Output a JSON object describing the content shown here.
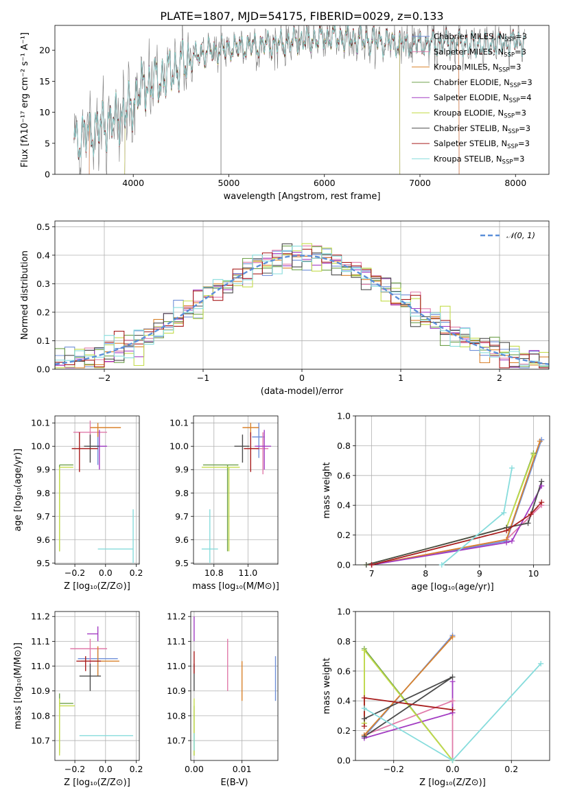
{
  "colors": {
    "Chabrier MILES": "#6f8fd8",
    "Salpeter MILES": "#e07aa9",
    "Kroupa MILES": "#d9822b",
    "Chabrier ELODIE": "#6ea04a",
    "Salpeter ELODIE": "#a23bc2",
    "Kroupa ELODIE": "#c4dc4a",
    "Chabrier STELIB": "#4a4a4a",
    "Salpeter STELIB": "#a81c1c",
    "Kroupa STELIB": "#86dcdc",
    "gaussian": "#5b8fd9"
  },
  "chart_data": [
    {
      "id": "spectrum",
      "type": "line",
      "title": "PLATE=1807, MJD=54175, FIBERID=0029, z=0.133",
      "xlabel": "wavelength [Angstrom, rest frame]",
      "ylabel": "Flux [fλ10⁻¹⁷ erg cm⁻² s⁻¹ A⁻¹]",
      "xlim": [
        3180,
        8350
      ],
      "ylim": [
        0,
        24
      ],
      "xticks": [
        4000,
        5000,
        6000,
        7000,
        8000
      ],
      "yticks": [
        0,
        5,
        10,
        15,
        20
      ],
      "grid": false,
      "legend_position": "top-right",
      "legend": [
        {
          "label": "Chabrier MILES, N_SSP=3",
          "color_key": "Chabrier MILES"
        },
        {
          "label": "Salpeter MILES, N_SSP=3",
          "color_key": "Salpeter MILES"
        },
        {
          "label": "Kroupa MILES, N_SSP=3",
          "color_key": "Kroupa MILES"
        },
        {
          "label": "Chabrier ELODIE, N_SSP=3",
          "color_key": "Chabrier ELODIE"
        },
        {
          "label": "Salpeter ELODIE, N_SSP=4",
          "color_key": "Salpeter ELODIE"
        },
        {
          "label": "Kroupa ELODIE, N_SSP=3",
          "color_key": "Kroupa ELODIE"
        },
        {
          "label": "Chabrier STELIB, N_SSP=3",
          "color_key": "Chabrier STELIB"
        },
        {
          "label": "Salpeter STELIB, N_SSP=3",
          "color_key": "Salpeter STELIB"
        },
        {
          "label": "Kroupa STELIB, N_SSP=3",
          "color_key": "Kroupa STELIB"
        }
      ],
      "continuum": {
        "x": [
          3380,
          3500,
          3700,
          3900,
          4100,
          4300,
          4500,
          4700,
          4900,
          5100,
          5300,
          5500,
          5700,
          5900,
          6100,
          6300,
          6500,
          6700,
          6900,
          7100,
          7300,
          7500,
          7700,
          7900,
          8100
        ],
        "y": [
          5.5,
          6.5,
          8.0,
          9.5,
          14.0,
          15.5,
          17.5,
          19.5,
          20.0,
          20.5,
          20.8,
          21.0,
          21.5,
          21.8,
          22.0,
          21.8,
          21.5,
          21.3,
          21.0,
          21.0,
          21.2,
          21.0,
          21.0,
          21.2,
          21.5
        ]
      },
      "model_ranges": [
        {
          "key": "Chabrier MILES",
          "range": [
            3540,
            7410
          ]
        },
        {
          "key": "Salpeter MILES",
          "range": [
            3540,
            7410
          ]
        },
        {
          "key": "Kroupa MILES",
          "range": [
            3540,
            7410
          ]
        },
        {
          "key": "Chabrier ELODIE",
          "range": [
            3910,
            6790
          ]
        },
        {
          "key": "Salpeter ELODIE",
          "range": [
            3910,
            6790
          ]
        },
        {
          "key": "Kroupa ELODIE",
          "range": [
            3910,
            6790
          ]
        },
        {
          "key": "Chabrier STELIB",
          "range": [
            3380,
            8100
          ]
        },
        {
          "key": "Salpeter STELIB",
          "range": [
            3380,
            8100
          ]
        },
        {
          "key": "Kroupa STELIB",
          "range": [
            3380,
            8100
          ]
        }
      ]
    },
    {
      "id": "residuals",
      "type": "histogram",
      "xlabel": "(data-model)/error",
      "ylabel": "Normed distribution",
      "xlim": [
        -2.5,
        2.5
      ],
      "ylim": [
        0,
        0.52
      ],
      "xticks": [
        -2,
        -1,
        0,
        1,
        2
      ],
      "yticks": [
        0.0,
        0.1,
        0.2,
        0.3,
        0.4,
        0.5
      ],
      "grid": true,
      "bin_width": 0.1,
      "legend": [
        {
          "label": "𝒩(0, 1)",
          "color_key": "gaussian",
          "style": "dashed"
        }
      ],
      "legend_position": "top-right"
    },
    {
      "id": "age-vs-Z",
      "type": "errorbar",
      "xlabel": "Z [log₁₀(Z/Z⊙)]",
      "ylabel": "age  [log₁₀(age/yr)]",
      "xlim": [
        -0.33,
        0.22
      ],
      "ylim": [
        9.495,
        10.13
      ],
      "xticks": [
        -0.2,
        0.0,
        0.2
      ],
      "yticks": [
        9.5,
        9.6,
        9.7,
        9.8,
        9.9,
        10.0,
        10.1
      ],
      "grid": true,
      "points": [
        {
          "key": "Chabrier MILES",
          "x": -0.05,
          "y": 10.0,
          "xerr": [
            0.07,
            0.05
          ],
          "yerr": [
            0.08,
            0.06
          ]
        },
        {
          "key": "Salpeter MILES",
          "x": -0.1,
          "y": 10.06,
          "xerr": [
            0.11,
            0.11
          ],
          "yerr": [
            0.05,
            0.05
          ]
        },
        {
          "key": "Kroupa MILES",
          "x": -0.05,
          "y": 10.08,
          "xerr": [
            0.05,
            0.15
          ],
          "yerr": [
            0.04,
            0.02
          ]
        },
        {
          "key": "Chabrier ELODIE",
          "x": -0.3,
          "y": 9.92,
          "xerr": [
            0.0,
            0.09
          ],
          "yerr": [
            0.37,
            0.0
          ]
        },
        {
          "key": "Salpeter ELODIE",
          "x": -0.04,
          "y": 10.0,
          "xerr": [
            0.05,
            0.05
          ],
          "yerr": [
            0.1,
            0.07
          ]
        },
        {
          "key": "Kroupa ELODIE",
          "x": -0.3,
          "y": 9.91,
          "xerr": [
            0.0,
            0.09
          ],
          "yerr": [
            0.36,
            0.0
          ]
        },
        {
          "key": "Chabrier STELIB",
          "x": -0.1,
          "y": 10.0,
          "xerr": [
            0.04,
            0.06
          ],
          "yerr": [
            0.07,
            0.05
          ]
        },
        {
          "key": "Salpeter STELIB",
          "x": -0.17,
          "y": 9.99,
          "xerr": [
            0.05,
            0.12
          ],
          "yerr": [
            0.1,
            0.07
          ]
        },
        {
          "key": "Kroupa STELIB",
          "x": 0.18,
          "y": 9.56,
          "xerr": [
            0.23,
            0.0
          ],
          "yerr": [
            0.06,
            0.17
          ]
        }
      ]
    },
    {
      "id": "age-vs-mass",
      "type": "errorbar",
      "xlabel": "mass [log₁₀(M/M⊙)]",
      "ylabel": "",
      "xlim": [
        10.6,
        11.22
      ],
      "ylim": [
        9.495,
        10.13
      ],
      "xticks": [
        10.75,
        11.0
      ],
      "yticks": [
        9.5,
        9.6,
        9.7,
        9.8,
        9.9,
        10.0,
        10.1
      ],
      "grid": true,
      "points": [
        {
          "key": "Chabrier MILES",
          "x": 11.08,
          "y": 10.04,
          "xerr": [
            0.05,
            0.04
          ],
          "yerr": [
            0.09,
            0.06
          ]
        },
        {
          "key": "Salpeter MILES",
          "x": 11.11,
          "y": 9.99,
          "xerr": [
            0.05,
            0.04
          ],
          "yerr": [
            0.11,
            0.07
          ]
        },
        {
          "key": "Kroupa MILES",
          "x": 11.02,
          "y": 10.08,
          "xerr": [
            0.06,
            0.06
          ],
          "yerr": [
            0.04,
            0.02
          ]
        },
        {
          "key": "Chabrier ELODIE",
          "x": 10.85,
          "y": 9.92,
          "xerr": [
            0.18,
            0.08
          ],
          "yerr": [
            0.37,
            0.0
          ]
        },
        {
          "key": "Salpeter ELODIE",
          "x": 11.12,
          "y": 10.0,
          "xerr": [
            0.07,
            0.05
          ],
          "yerr": [
            0.1,
            0.07
          ]
        },
        {
          "key": "Kroupa ELODIE",
          "x": 10.86,
          "y": 9.91,
          "xerr": [
            0.2,
            0.08
          ],
          "yerr": [
            0.36,
            0.0
          ]
        },
        {
          "key": "Chabrier STELIB",
          "x": 10.96,
          "y": 10.0,
          "xerr": [
            0.06,
            0.05
          ],
          "yerr": [
            0.07,
            0.05
          ]
        },
        {
          "key": "Salpeter STELIB",
          "x": 11.02,
          "y": 9.99,
          "xerr": [
            0.05,
            0.06
          ],
          "yerr": [
            0.1,
            0.07
          ]
        },
        {
          "key": "Kroupa STELIB",
          "x": 10.72,
          "y": 9.56,
          "xerr": [
            0.06,
            0.06
          ],
          "yerr": [
            0.06,
            0.17
          ]
        }
      ]
    },
    {
      "id": "weight-vs-age",
      "type": "line",
      "xlabel": "age  [log₁₀(age/yr)]",
      "ylabel": "mass weight",
      "xlim": [
        6.7,
        10.3
      ],
      "ylim": [
        0,
        1.0
      ],
      "xticks": [
        7,
        8,
        9,
        10
      ],
      "yticks": [
        0.0,
        0.2,
        0.4,
        0.6,
        0.8,
        1.0
      ],
      "grid": true,
      "series": [
        {
          "key": "Chabrier MILES",
          "x": [
            7.0,
            9.5,
            10.15
          ],
          "y": [
            0.0,
            0.16,
            0.84
          ]
        },
        {
          "key": "Salpeter MILES",
          "x": [
            7.0,
            9.5,
            10.15
          ],
          "y": [
            0.0,
            0.17,
            0.4
          ]
        },
        {
          "key": "Kroupa MILES",
          "x": [
            7.0,
            9.5,
            10.12
          ],
          "y": [
            0.0,
            0.17,
            0.83
          ]
        },
        {
          "key": "Chabrier ELODIE",
          "x": [
            6.9,
            9.5,
            10.0
          ],
          "y": [
            0.0,
            0.25,
            0.75
          ]
        },
        {
          "key": "Salpeter ELODIE",
          "x": [
            7.0,
            9.5,
            9.6,
            10.15
          ],
          "y": [
            0.0,
            0.15,
            0.16,
            0.53
          ]
        },
        {
          "key": "Kroupa ELODIE",
          "x": [
            6.9,
            9.5,
            10.0
          ],
          "y": [
            0.0,
            0.25,
            0.74
          ]
        },
        {
          "key": "Chabrier STELIB",
          "x": [
            6.9,
            9.5,
            9.9,
            10.15
          ],
          "y": [
            0.0,
            0.25,
            0.28,
            0.56
          ]
        },
        {
          "key": "Salpeter STELIB",
          "x": [
            7.0,
            9.5,
            9.95,
            10.15
          ],
          "y": [
            0.0,
            0.23,
            0.34,
            0.42
          ]
        },
        {
          "key": "Kroupa STELIB",
          "x": [
            8.3,
            9.45,
            9.6
          ],
          "y": [
            0.0,
            0.35,
            0.65
          ]
        }
      ]
    },
    {
      "id": "mass-vs-Z",
      "type": "errorbar",
      "xlabel": "Z [log₁₀(Z/Z⊙)]",
      "ylabel": "mass [log₁₀(M/M⊙)]",
      "xlim": [
        -0.33,
        0.22
      ],
      "ylim": [
        10.62,
        11.22
      ],
      "xticks": [
        -0.2,
        0.0,
        0.2
      ],
      "yticks": [
        10.7,
        10.8,
        10.9,
        11.0,
        11.1,
        11.2
      ],
      "grid": true,
      "points": [
        {
          "key": "Chabrier MILES",
          "x": -0.05,
          "y": 11.03,
          "xerr": [
            0.13,
            0.13
          ],
          "yerr": [
            0.07,
            0.04
          ]
        },
        {
          "key": "Salpeter MILES",
          "x": -0.1,
          "y": 11.07,
          "xerr": [
            0.13,
            0.11
          ],
          "yerr": [
            0.06,
            0.04
          ]
        },
        {
          "key": "Kroupa MILES",
          "x": -0.05,
          "y": 11.02,
          "xerr": [
            0.11,
            0.14
          ],
          "yerr": [
            0.06,
            0.06
          ]
        },
        {
          "key": "Chabrier ELODIE",
          "x": -0.3,
          "y": 10.85,
          "xerr": [
            0.0,
            0.09
          ],
          "yerr": [
            0.2,
            0.04
          ]
        },
        {
          "key": "Salpeter ELODIE",
          "x": -0.05,
          "y": 11.13,
          "xerr": [
            0.07,
            0.0
          ],
          "yerr": [
            0.03,
            0.03
          ]
        },
        {
          "key": "Kroupa ELODIE",
          "x": -0.3,
          "y": 10.84,
          "xerr": [
            0.0,
            0.1
          ],
          "yerr": [
            0.2,
            0.03
          ]
        },
        {
          "key": "Chabrier STELIB",
          "x": -0.1,
          "y": 10.96,
          "xerr": [
            0.07,
            0.07
          ],
          "yerr": [
            0.06,
            0.05
          ]
        },
        {
          "key": "Salpeter STELIB",
          "x": -0.13,
          "y": 11.02,
          "xerr": [
            0.06,
            0.1
          ],
          "yerr": [
            0.04,
            0.02
          ]
        },
        {
          "key": "Kroupa STELIB",
          "x": 0.05,
          "y": 10.72,
          "xerr": [
            0.22,
            0.13
          ],
          "yerr": [
            0.0,
            0.0
          ]
        }
      ]
    },
    {
      "id": "mass-vs-ebv",
      "type": "errorbar",
      "xlabel": "E(B-V)",
      "ylabel": "",
      "xlim": [
        -0.0007,
        0.0175
      ],
      "ylim": [
        10.62,
        11.22
      ],
      "xticks": [
        0.0,
        0.01
      ],
      "yticks": [
        10.7,
        10.8,
        10.9,
        11.0,
        11.1,
        11.2
      ],
      "grid": true,
      "points": [
        {
          "key": "Chabrier MILES",
          "x": 0.017,
          "y": 10.96,
          "xerr": [
            0,
            0
          ],
          "yerr": [
            0.1,
            0.08
          ]
        },
        {
          "key": "Salpeter MILES",
          "x": 0.007,
          "y": 11.02,
          "xerr": [
            0,
            0
          ],
          "yerr": [
            0.12,
            0.09
          ]
        },
        {
          "key": "Kroupa MILES",
          "x": 0.01,
          "y": 10.96,
          "xerr": [
            0,
            0
          ],
          "yerr": [
            0.1,
            0.06
          ]
        },
        {
          "key": "Chabrier ELODIE",
          "x": 0.0,
          "y": 10.78,
          "xerr": [
            0,
            0
          ],
          "yerr": [
            0.14,
            0.06
          ]
        },
        {
          "key": "Salpeter ELODIE",
          "x": 0.0,
          "y": 11.15,
          "xerr": [
            0,
            0
          ],
          "yerr": [
            0.05,
            0.05
          ]
        },
        {
          "key": "Kroupa ELODIE",
          "x": 0.0,
          "y": 10.77,
          "xerr": [
            0,
            0
          ],
          "yerr": [
            0.13,
            0.1
          ]
        },
        {
          "key": "Chabrier STELIB",
          "x": 0.0,
          "y": 10.96,
          "xerr": [
            0,
            0
          ],
          "yerr": [
            0.06,
            0.05
          ]
        },
        {
          "key": "Salpeter STELIB",
          "x": 0.0,
          "y": 11.02,
          "xerr": [
            0,
            0
          ],
          "yerr": [
            0.05,
            0.04
          ]
        },
        {
          "key": "Kroupa STELIB",
          "x": 0.0,
          "y": 10.7,
          "xerr": [
            0,
            0
          ],
          "yerr": [
            0.04,
            0.03
          ]
        }
      ]
    },
    {
      "id": "weight-vs-Z",
      "type": "line",
      "xlabel": "Z [log₁₀(Z/Z⊙)]",
      "ylabel": "mass weight",
      "xlim": [
        -0.33,
        0.33
      ],
      "ylim": [
        0,
        1.0
      ],
      "xticks": [
        -0.2,
        0.0,
        0.2
      ],
      "yticks": [
        0.0,
        0.2,
        0.4,
        0.6,
        0.8,
        1.0
      ],
      "grid": true,
      "series": [
        {
          "key": "Chabrier MILES",
          "x": [
            -0.3,
            0.0
          ],
          "y": [
            0.16,
            0.84
          ]
        },
        {
          "key": "Salpeter MILES",
          "x": [
            -0.3,
            0.0,
            0.0
          ],
          "y": [
            0.17,
            0.4,
            0.0
          ]
        },
        {
          "key": "Kroupa MILES",
          "x": [
            -0.3,
            0.0
          ],
          "y": [
            0.17,
            0.83
          ]
        },
        {
          "key": "Chabrier ELODIE",
          "x": [
            -0.3,
            -0.3,
            0.0
          ],
          "y": [
            0.25,
            0.75,
            0.0
          ]
        },
        {
          "key": "Salpeter ELODIE",
          "x": [
            -0.3,
            0.0,
            0.0
          ],
          "y": [
            0.15,
            0.32,
            0.53
          ]
        },
        {
          "key": "Kroupa ELODIE",
          "x": [
            -0.3,
            -0.3,
            0.0
          ],
          "y": [
            0.25,
            0.74,
            0.0
          ]
        },
        {
          "key": "Chabrier STELIB",
          "x": [
            -0.3,
            0.0,
            -0.3
          ],
          "y": [
            0.28,
            0.56,
            0.16
          ]
        },
        {
          "key": "Salpeter STELIB",
          "x": [
            -0.3,
            -0.3,
            0.0
          ],
          "y": [
            0.23,
            0.42,
            0.34
          ]
        },
        {
          "key": "Kroupa STELIB",
          "x": [
            -0.3,
            0.0,
            0.3
          ],
          "y": [
            0.35,
            0.0,
            0.65
          ]
        }
      ]
    }
  ]
}
